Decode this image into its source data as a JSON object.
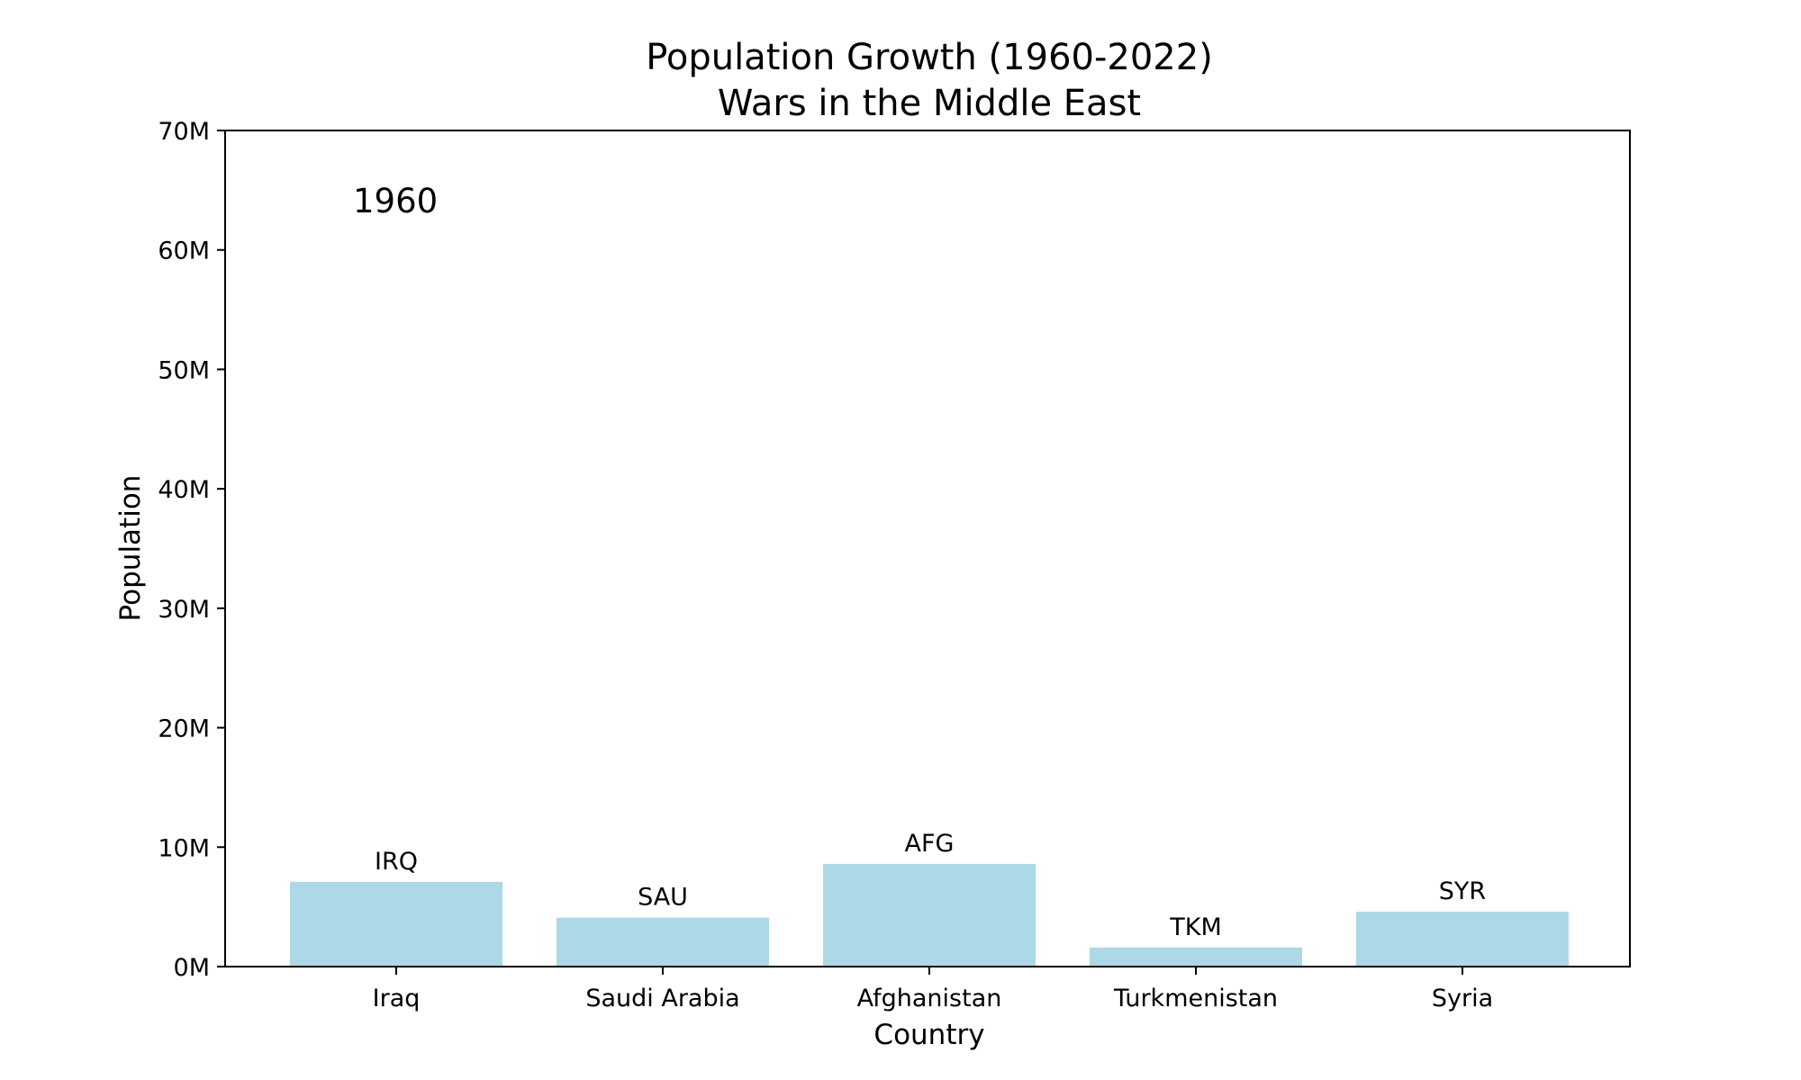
{
  "chart_data": {
    "type": "bar",
    "title": "Population Growth (1960-2022)",
    "subtitle": "Wars in the Middle East",
    "xlabel": "Country",
    "ylabel": "Population",
    "annotation": "1960",
    "ylim": [
      0,
      70000000
    ],
    "yticks": [
      0,
      10000000,
      20000000,
      30000000,
      40000000,
      50000000,
      60000000,
      70000000
    ],
    "ytick_labels": [
      "0M",
      "10M",
      "20M",
      "30M",
      "40M",
      "50M",
      "60M",
      "70M"
    ],
    "categories": [
      "Iraq",
      "Saudi Arabia",
      "Afghanistan",
      "Turkmenistan",
      "Syria"
    ],
    "codes": [
      "IRQ",
      "SAU",
      "AFG",
      "TKM",
      "SYR"
    ],
    "values": [
      7100000,
      4100000,
      8600000,
      1600000,
      4600000
    ],
    "bar_color": "#add8e6",
    "grid": false,
    "legend": "none"
  }
}
